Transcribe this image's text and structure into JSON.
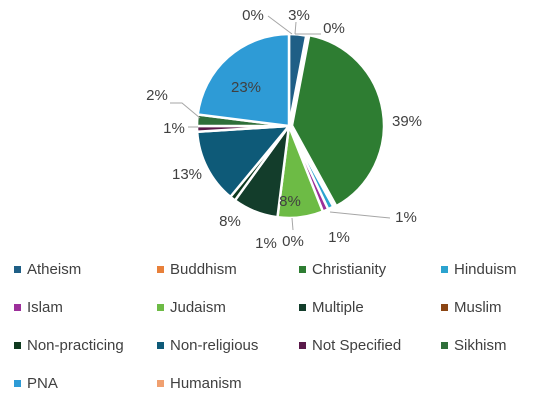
{
  "chart_data": {
    "type": "pie",
    "categories": [
      "Atheism",
      "Buddhism",
      "Christianity",
      "Hinduism",
      "Islam",
      "Judaism",
      "Multiple",
      "Muslim",
      "Non-practicing",
      "Non-religious",
      "Not Specified",
      "Sikhism",
      "PNA",
      "Humanism"
    ],
    "values": [
      3,
      0,
      39,
      1,
      1,
      8,
      8,
      0,
      1,
      13,
      1,
      2,
      23,
      0
    ],
    "labels": [
      "3%",
      "0%",
      "39%",
      "1%",
      "1%",
      "8%",
      "8%",
      "0%",
      "1%",
      "13%",
      "1%",
      "2%",
      "23%",
      "0%"
    ],
    "colors": [
      "#1f5f86",
      "#e8803a",
      "#2e7d32",
      "#2ba3cf",
      "#9c2f9a",
      "#6dbb45",
      "#133d2b",
      "#8b4513",
      "#0f3a1f",
      "#0e5a78",
      "#5a1a4a",
      "#2f6f3a",
      "#2e9bd6",
      "#f0a070"
    ],
    "legend_position": "bottom",
    "legend": [
      "Atheism",
      "Buddhism",
      "Christianity",
      "Hinduism",
      "Islam",
      "Judaism",
      "Multiple",
      "Muslim",
      "Non-practicing",
      "Non-religious",
      "Not Specified",
      "Sikhism",
      "PNA",
      "Humanism"
    ]
  }
}
